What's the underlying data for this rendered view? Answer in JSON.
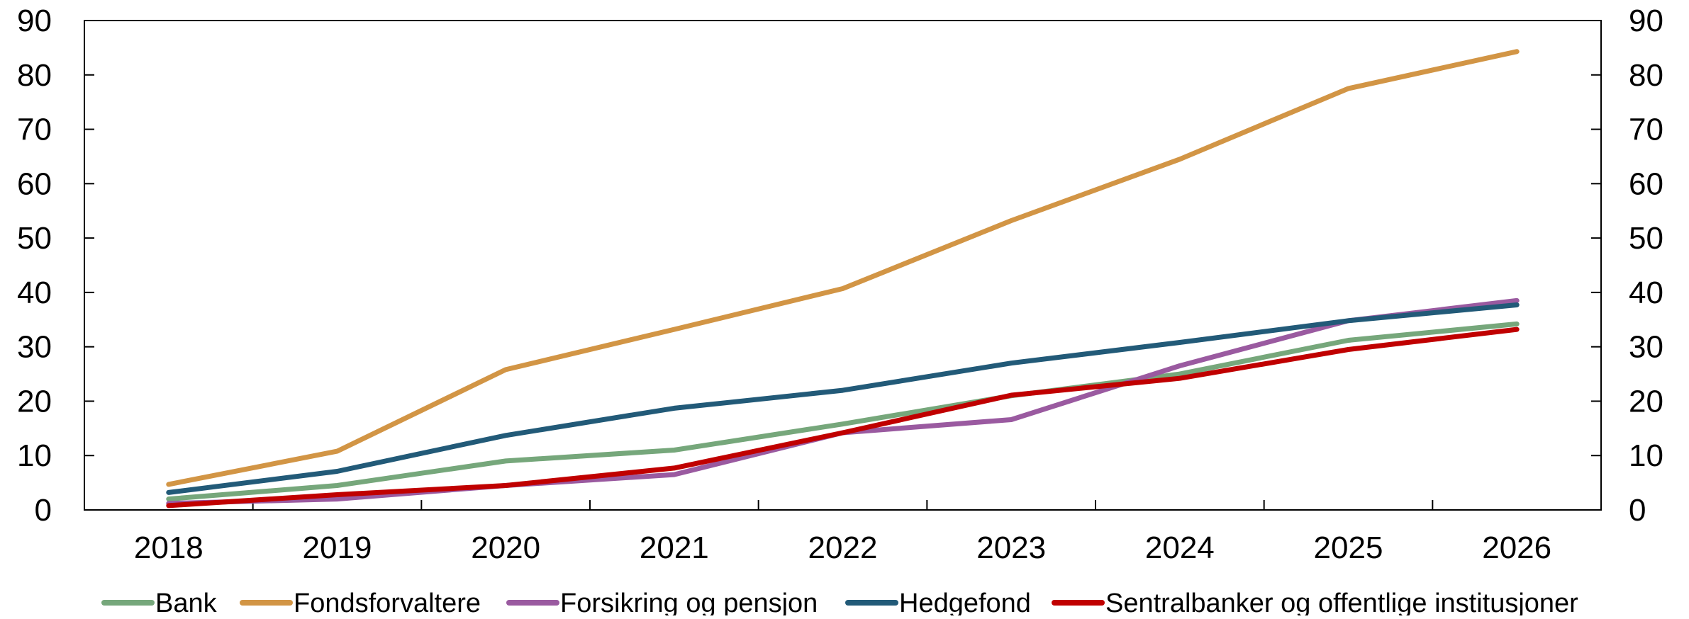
{
  "chart_data": {
    "type": "line",
    "title": "",
    "xlabel": "",
    "ylabel": "",
    "categories": [
      "2018",
      "2019",
      "2020",
      "2021",
      "2022",
      "2023",
      "2024",
      "2025",
      "2026"
    ],
    "ylim": [
      0,
      90
    ],
    "yticks": [
      0,
      10,
      20,
      30,
      40,
      50,
      60,
      70,
      80,
      90
    ],
    "grid": false,
    "secondary_y_axis_mirrored": true,
    "legend_position": "bottom",
    "series": [
      {
        "name": "Bank",
        "color": "#76a77b",
        "values": [
          2,
          4.5,
          9,
          11,
          15.8,
          21,
          25,
          31.2,
          34.2
        ]
      },
      {
        "name": "Fondsforvaltere",
        "color": "#d29545",
        "values": [
          4.7,
          10.8,
          25.8,
          33.2,
          40.7,
          53.2,
          64.5,
          77.5,
          84.3
        ]
      },
      {
        "name": "Forsikring og pensjon",
        "color": "#9a5aa0",
        "values": [
          1.2,
          2,
          4.5,
          6.5,
          14.2,
          16.6,
          26.5,
          34.8,
          38.5
        ]
      },
      {
        "name": "Hedgefond",
        "color": "#225a78",
        "values": [
          3.2,
          7.1,
          13.7,
          18.7,
          22,
          27,
          30.8,
          34.8,
          37.7
        ]
      },
      {
        "name": "Sentralbanker og offentlige institusjoner",
        "color": "#c00000",
        "values": [
          0.8,
          2.8,
          4.5,
          7.7,
          14.2,
          21.1,
          24.2,
          29.5,
          33.2
        ]
      }
    ]
  }
}
